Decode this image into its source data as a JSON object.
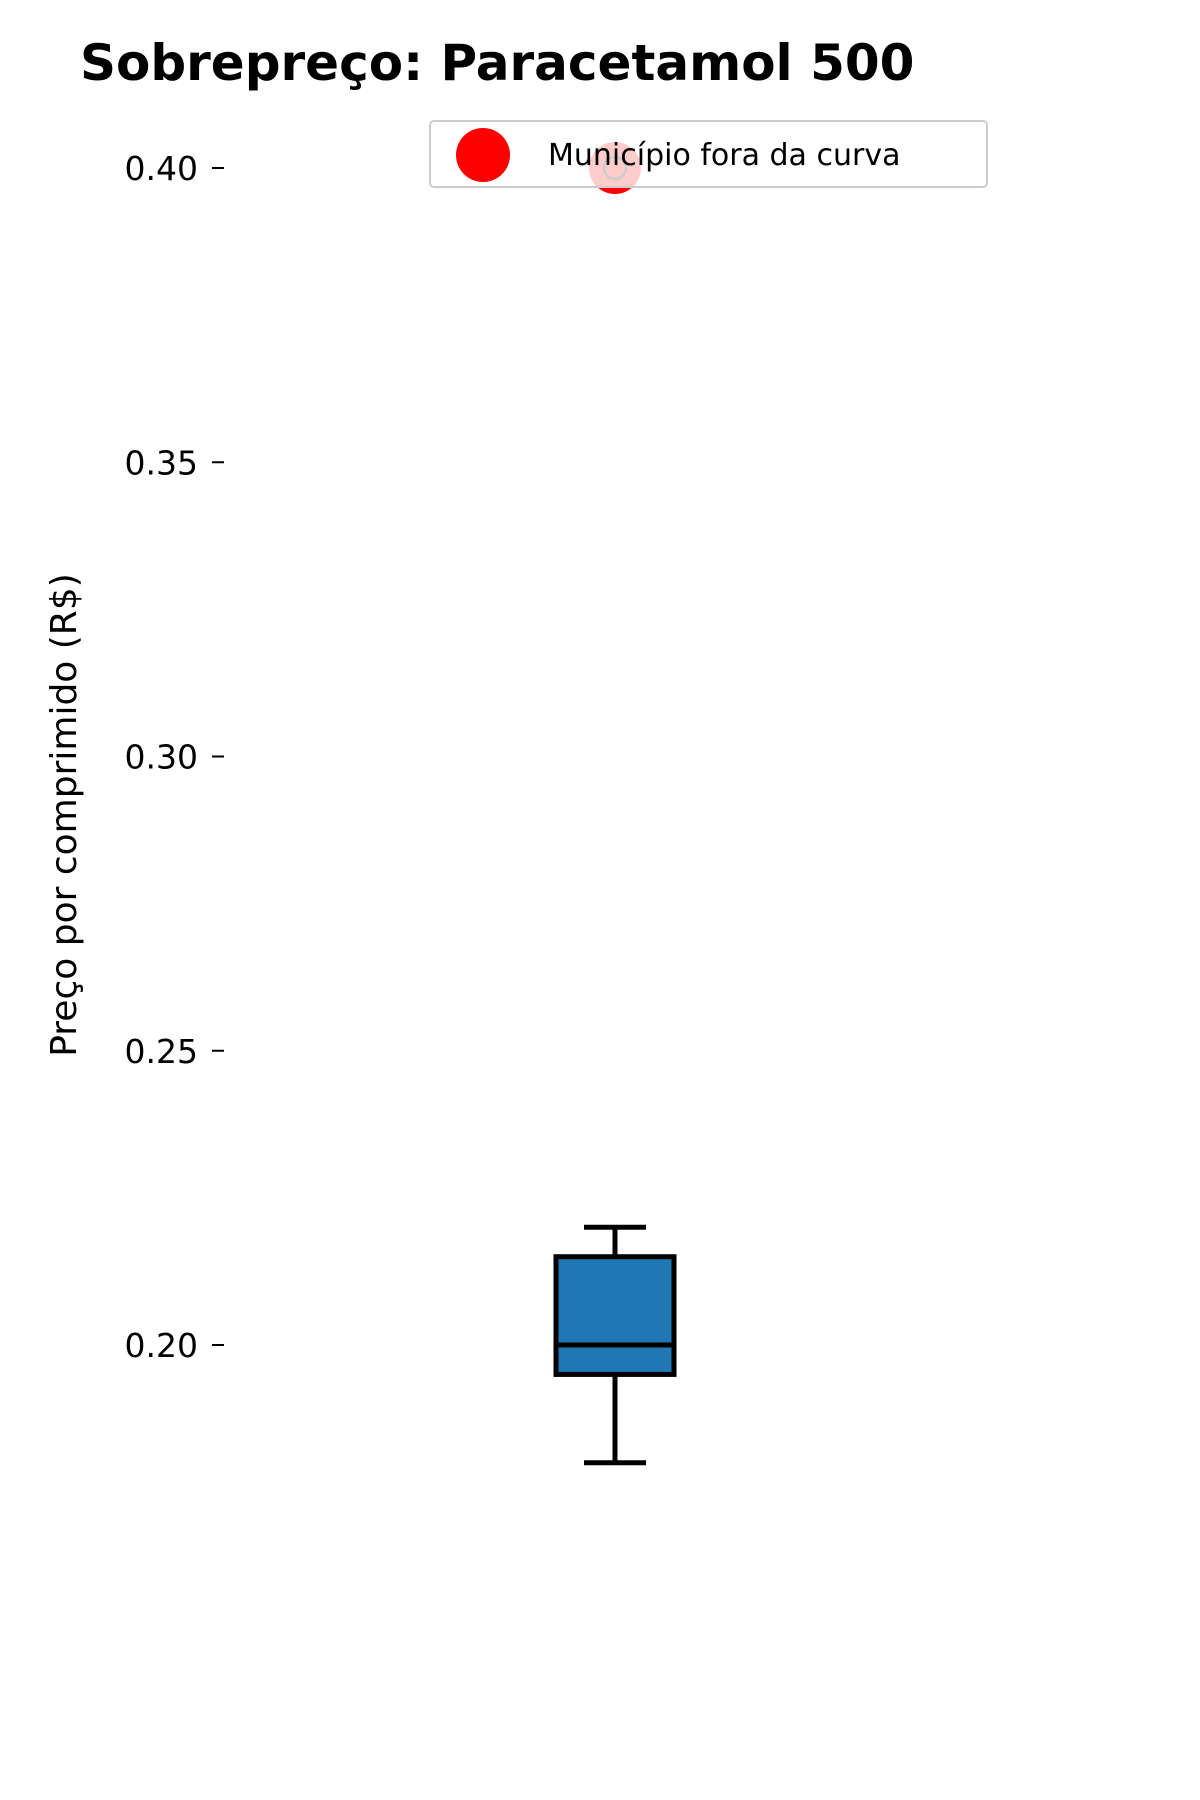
{
  "chart_data": {
    "type": "box",
    "title": "Sobrepreço: Paracetamol 500",
    "xlabel": "",
    "ylabel": "Preço por comprimido (R$)",
    "ylim": [
      0.18,
      0.405
    ],
    "yticks": [
      "0.20",
      "0.25",
      "0.30",
      "0.35",
      "0.40"
    ],
    "ytick_values": [
      0.2,
      0.25,
      0.3,
      0.35,
      0.4
    ],
    "grid": false,
    "legend_position": "upper right",
    "box": {
      "whisker_low": 0.18,
      "q1": 0.195,
      "median": 0.2,
      "q3": 0.215,
      "whisker_high": 0.22,
      "color": "#1f77b4"
    },
    "outlier": {
      "y": 0.4,
      "color": "#ff0000",
      "label": "Município fora da curva"
    }
  }
}
